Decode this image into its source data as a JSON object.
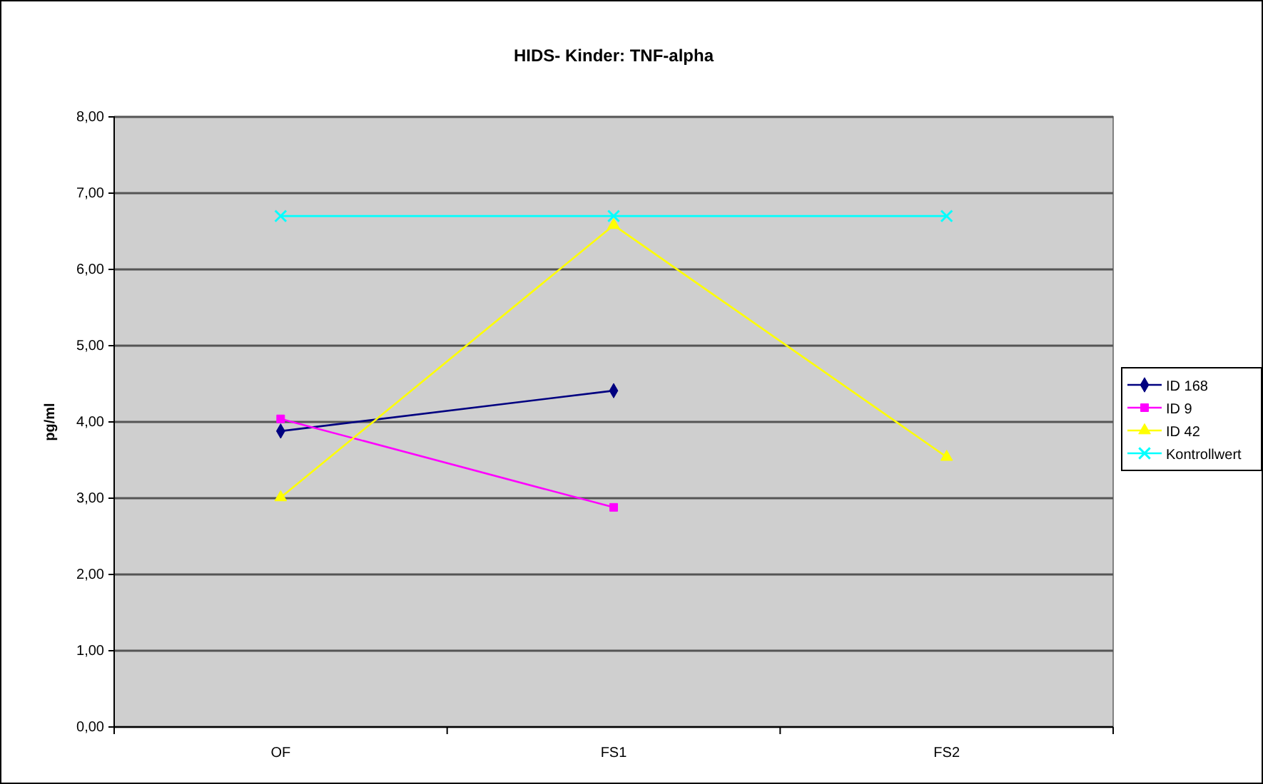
{
  "chart_data": {
    "type": "line",
    "title": "HIDS- Kinder: TNF-alpha",
    "ylabel": "pg/ml",
    "categories": [
      "OF",
      "FS1",
      "FS2"
    ],
    "series": [
      {
        "name": "ID 168",
        "color": "#000080",
        "marker": "diamond",
        "values": [
          3.88,
          4.41,
          null
        ]
      },
      {
        "name": "ID 9",
        "color": "#ff00ff",
        "marker": "square",
        "values": [
          4.04,
          2.88,
          null
        ]
      },
      {
        "name": "ID 42",
        "color": "#ffff00",
        "marker": "triangle",
        "values": [
          3.01,
          6.58,
          3.54
        ]
      },
      {
        "name": "Kontrollwert",
        "color": "#00ffff",
        "marker": "cross",
        "values": [
          6.7,
          6.7,
          6.7
        ]
      }
    ],
    "ylim": [
      0,
      8
    ],
    "yticks": [
      {
        "value": 0,
        "label": "0,00"
      },
      {
        "value": 1,
        "label": "1,00"
      },
      {
        "value": 2,
        "label": "2,00"
      },
      {
        "value": 3,
        "label": "3,00"
      },
      {
        "value": 4,
        "label": "4,00"
      },
      {
        "value": 5,
        "label": "5,00"
      },
      {
        "value": 6,
        "label": "6,00"
      },
      {
        "value": 7,
        "label": "7,00"
      },
      {
        "value": 8,
        "label": "8,00"
      }
    ],
    "grid": "y",
    "legend": "right"
  }
}
